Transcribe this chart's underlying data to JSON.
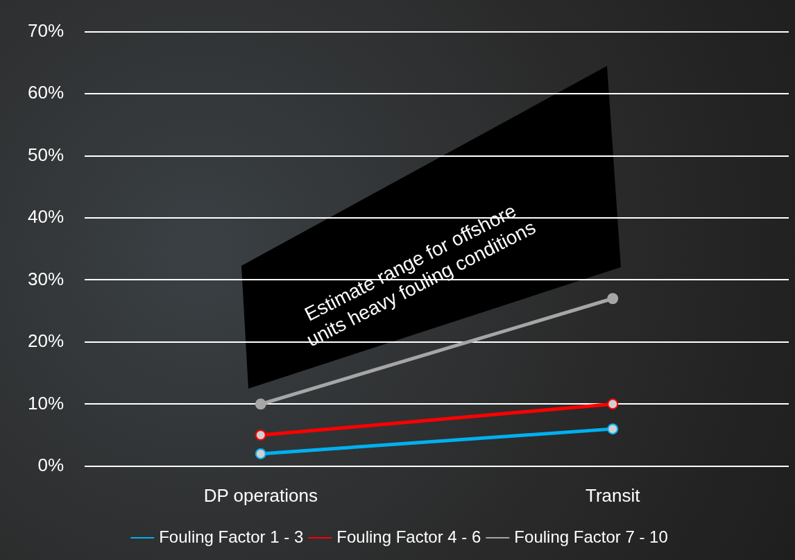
{
  "chart_data": {
    "type": "line",
    "categories": [
      "DP operations",
      "Transit"
    ],
    "series": [
      {
        "name": "Fouling Factor 1 - 3",
        "color": "#00b0f0",
        "values": [
          2,
          6
        ]
      },
      {
        "name": "Fouling Factor 4 - 6",
        "color": "#ff0000",
        "values": [
          5,
          10
        ]
      },
      {
        "name": "Fouling Factor 7 - 10",
        "color": "#a6a6a6",
        "values": [
          10,
          27
        ]
      }
    ],
    "ylim": [
      0,
      70
    ],
    "yticks": [
      {
        "value": 0,
        "label": "0%"
      },
      {
        "value": 10,
        "label": "10%"
      },
      {
        "value": 20,
        "label": "20%"
      },
      {
        "value": 30,
        "label": "30%"
      },
      {
        "value": 40,
        "label": "40%"
      },
      {
        "value": 50,
        "label": "50%"
      },
      {
        "value": 60,
        "label": "60%"
      },
      {
        "value": 70,
        "label": "70%"
      }
    ],
    "grid": "y",
    "legend": "bottom",
    "marker": "circle",
    "line_style": "solid",
    "annotations": [
      "Estimate range for offshore units heavy fouling conditions"
    ]
  }
}
